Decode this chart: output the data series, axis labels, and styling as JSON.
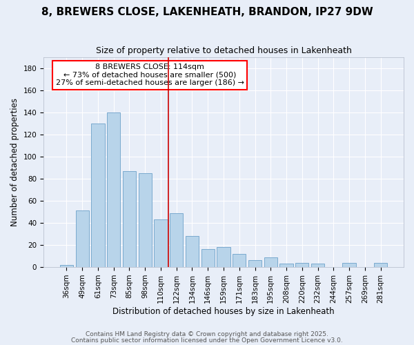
{
  "title": "8, BREWERS CLOSE, LAKENHEATH, BRANDON, IP27 9DW",
  "subtitle": "Size of property relative to detached houses in Lakenheath",
  "xlabel": "Distribution of detached houses by size in Lakenheath",
  "ylabel": "Number of detached properties",
  "categories": [
    "36sqm",
    "49sqm",
    "61sqm",
    "73sqm",
    "85sqm",
    "98sqm",
    "110sqm",
    "122sqm",
    "134sqm",
    "146sqm",
    "159sqm",
    "171sqm",
    "183sqm",
    "195sqm",
    "208sqm",
    "220sqm",
    "232sqm",
    "244sqm",
    "257sqm",
    "269sqm",
    "281sqm"
  ],
  "values": [
    2,
    51,
    130,
    140,
    87,
    85,
    43,
    49,
    28,
    16,
    18,
    12,
    6,
    9,
    3,
    4,
    3,
    0,
    4,
    0,
    4
  ],
  "bar_color": "#b8d4ea",
  "bar_edge_color": "#7aaace",
  "vline_x_index": 6.5,
  "vline_color": "#cc0000",
  "annotation_line1": "8 BREWERS CLOSE: 114sqm",
  "annotation_line2": "← 73% of detached houses are smaller (500)",
  "annotation_line3": "27% of semi-detached houses are larger (186) →",
  "ylim": [
    0,
    190
  ],
  "yticks": [
    0,
    20,
    40,
    60,
    80,
    100,
    120,
    140,
    160,
    180
  ],
  "footer1": "Contains HM Land Registry data © Crown copyright and database right 2025.",
  "footer2": "Contains public sector information licensed under the Open Government Licence v3.0.",
  "bg_color": "#e8eef8",
  "plot_bg_color": "#e8eef8",
  "grid_color": "#ffffff",
  "title_fontsize": 11,
  "subtitle_fontsize": 9,
  "axis_label_fontsize": 8.5,
  "tick_fontsize": 7.5,
  "annotation_fontsize": 8,
  "footer_fontsize": 6.5
}
